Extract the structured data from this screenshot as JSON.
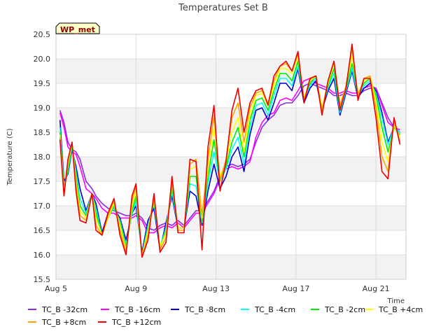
{
  "chart_data": {
    "type": "line",
    "title": "Temperatures Set B",
    "xlabel": "Time",
    "ylabel": "Temperature (C)",
    "badge": "WP_met",
    "xlim": [
      5,
      22.5
    ],
    "ylim": [
      15.5,
      20.5
    ],
    "x_ticks": [
      {
        "v": 5,
        "label": "Aug 5"
      },
      {
        "v": 9,
        "label": "Aug 9"
      },
      {
        "v": 13,
        "label": "Aug 13"
      },
      {
        "v": 17,
        "label": "Aug 17"
      },
      {
        "v": 21,
        "label": "Aug 21"
      }
    ],
    "y_ticks": [
      15.5,
      16.0,
      16.5,
      17.0,
      17.5,
      18.0,
      18.5,
      19.0,
      19.5,
      20.0,
      20.5
    ],
    "x": [
      5.2,
      5.4,
      5.6,
      5.8,
      6.0,
      6.2,
      6.5,
      6.8,
      7.0,
      7.3,
      7.6,
      7.9,
      8.2,
      8.5,
      8.8,
      9.0,
      9.3,
      9.6,
      9.9,
      10.2,
      10.5,
      10.8,
      11.1,
      11.4,
      11.7,
      12.0,
      12.3,
      12.6,
      12.9,
      13.2,
      13.5,
      13.8,
      14.1,
      14.4,
      14.7,
      15.0,
      15.3,
      15.6,
      15.9,
      16.2,
      16.5,
      16.8,
      17.1,
      17.4,
      17.7,
      18.0,
      18.3,
      18.6,
      18.9,
      19.2,
      19.5,
      19.8,
      20.1,
      20.4,
      20.7,
      21.0,
      21.3,
      21.6,
      21.9,
      22.2
    ],
    "series": [
      {
        "name": "TC_B -32cm",
        "color": "#8a2be2",
        "values": [
          18.95,
          18.7,
          18.3,
          18.15,
          18.1,
          17.95,
          17.5,
          17.35,
          17.2,
          17.05,
          16.95,
          16.9,
          16.85,
          16.8,
          16.8,
          16.85,
          16.75,
          16.55,
          16.5,
          16.6,
          16.65,
          16.6,
          16.7,
          16.6,
          16.75,
          16.9,
          16.9,
          17.1,
          17.3,
          17.6,
          17.8,
          17.85,
          17.8,
          17.85,
          17.95,
          18.3,
          18.6,
          18.75,
          18.85,
          19.05,
          19.1,
          19.1,
          19.25,
          19.45,
          19.5,
          19.45,
          19.4,
          19.35,
          19.25,
          19.25,
          19.3,
          19.25,
          19.25,
          19.35,
          19.4,
          19.4,
          19.1,
          18.8,
          18.6,
          18.5
        ]
      },
      {
        "name": "TC_B -16cm",
        "color": "#ff00ff",
        "values": [
          18.9,
          18.6,
          18.2,
          18.1,
          18.05,
          17.8,
          17.35,
          17.25,
          17.15,
          16.95,
          16.85,
          16.85,
          16.75,
          16.75,
          16.75,
          16.8,
          16.7,
          16.45,
          16.45,
          16.55,
          16.6,
          16.55,
          16.65,
          16.55,
          16.7,
          16.85,
          16.85,
          17.05,
          17.25,
          17.55,
          17.75,
          17.8,
          17.75,
          17.8,
          17.9,
          18.4,
          18.7,
          18.85,
          18.9,
          19.15,
          19.2,
          19.15,
          19.35,
          19.55,
          19.6,
          19.5,
          19.45,
          19.4,
          19.3,
          19.3,
          19.35,
          19.3,
          19.3,
          19.4,
          19.45,
          19.4,
          19.05,
          18.7,
          18.6,
          18.55
        ]
      },
      {
        "name": "TC_B -8cm",
        "color": "#0000cd",
        "values": [
          18.75,
          17.5,
          17.65,
          18.15,
          17.8,
          17.35,
          16.9,
          17.25,
          17.05,
          16.45,
          16.85,
          16.95,
          16.75,
          16.3,
          16.85,
          17.0,
          16.05,
          16.7,
          16.95,
          16.1,
          16.65,
          17.2,
          16.55,
          16.55,
          17.3,
          17.2,
          16.6,
          17.3,
          17.85,
          17.35,
          17.6,
          18.0,
          18.2,
          17.7,
          18.45,
          18.95,
          19.0,
          18.75,
          19.1,
          19.5,
          19.5,
          19.35,
          19.8,
          19.1,
          19.4,
          19.55,
          18.95,
          19.35,
          19.6,
          18.85,
          19.3,
          19.75,
          19.2,
          19.4,
          19.5,
          19.35,
          18.9,
          18.3,
          18.6,
          18.5
        ]
      },
      {
        "name": "TC_B -4cm",
        "color": "#00ffff",
        "values": [
          18.6,
          17.4,
          17.7,
          18.2,
          17.7,
          17.15,
          16.85,
          17.25,
          16.95,
          16.4,
          16.8,
          16.95,
          16.7,
          16.2,
          16.85,
          17.1,
          16.0,
          16.6,
          17.05,
          16.15,
          16.55,
          17.3,
          16.55,
          16.55,
          17.45,
          17.4,
          16.65,
          17.45,
          18.1,
          17.5,
          17.75,
          18.15,
          18.4,
          17.85,
          18.6,
          19.05,
          19.1,
          18.85,
          19.25,
          19.6,
          19.6,
          19.45,
          19.85,
          19.2,
          19.45,
          19.6,
          19.0,
          19.4,
          19.7,
          18.9,
          19.35,
          19.8,
          19.25,
          19.45,
          19.55,
          19.3,
          18.8,
          18.25,
          18.6,
          18.5
        ]
      },
      {
        "name": "TC_B -2cm",
        "color": "#00ee00",
        "values": [
          18.5,
          17.35,
          17.75,
          18.25,
          17.6,
          17.0,
          16.8,
          17.25,
          16.85,
          16.4,
          16.75,
          17.0,
          16.65,
          16.15,
          16.9,
          17.2,
          15.98,
          16.55,
          17.1,
          16.15,
          16.5,
          17.4,
          16.55,
          16.55,
          17.6,
          17.6,
          16.7,
          17.6,
          18.35,
          17.55,
          17.8,
          18.3,
          18.6,
          18.0,
          18.75,
          19.15,
          19.2,
          18.95,
          19.35,
          19.7,
          19.7,
          19.55,
          19.95,
          19.2,
          19.5,
          19.65,
          19.0,
          19.45,
          19.8,
          18.95,
          19.4,
          19.9,
          19.3,
          19.5,
          19.6,
          19.25,
          18.6,
          18.1,
          18.6,
          18.45
        ]
      },
      {
        "name": "TC_B +4cm",
        "color": "#ffff00",
        "values": [
          18.45,
          17.3,
          17.85,
          18.28,
          17.5,
          16.9,
          16.75,
          17.25,
          16.75,
          16.4,
          16.75,
          17.05,
          16.6,
          16.1,
          17.0,
          17.3,
          15.97,
          16.5,
          17.15,
          16.15,
          16.45,
          17.5,
          16.55,
          16.55,
          17.75,
          17.8,
          16.75,
          17.75,
          18.6,
          17.6,
          17.9,
          18.5,
          18.8,
          18.1,
          18.85,
          19.25,
          19.3,
          19.05,
          19.45,
          19.8,
          19.8,
          19.7,
          20.05,
          19.2,
          19.55,
          19.65,
          19.0,
          19.5,
          19.9,
          19.05,
          19.45,
          20.05,
          19.3,
          19.55,
          19.65,
          19.15,
          18.3,
          17.9,
          18.65,
          18.4
        ]
      },
      {
        "name": "TC_B +8cm",
        "color": "#ffa500",
        "values": [
          18.4,
          17.25,
          17.9,
          18.3,
          17.4,
          16.8,
          16.7,
          17.25,
          16.6,
          16.4,
          16.8,
          17.1,
          16.5,
          16.05,
          17.1,
          17.4,
          15.96,
          16.4,
          17.2,
          16.1,
          16.35,
          17.55,
          16.5,
          16.5,
          17.85,
          17.95,
          16.8,
          17.95,
          18.85,
          17.5,
          17.95,
          18.8,
          19.1,
          18.3,
          19.0,
          19.3,
          19.35,
          19.1,
          19.55,
          19.85,
          19.9,
          19.75,
          20.1,
          19.15,
          19.6,
          19.65,
          18.95,
          19.55,
          19.95,
          19.05,
          19.45,
          20.2,
          19.25,
          19.6,
          19.65,
          19.0,
          18.0,
          17.7,
          18.75,
          18.3
        ]
      },
      {
        "name": "TC_B +12cm",
        "color": "#ee0000",
        "values": [
          18.35,
          17.2,
          17.95,
          18.3,
          17.3,
          16.7,
          16.65,
          17.25,
          16.5,
          16.4,
          16.85,
          17.15,
          16.4,
          16.0,
          17.2,
          17.45,
          15.95,
          16.3,
          17.25,
          16.05,
          16.25,
          17.6,
          16.45,
          16.45,
          17.95,
          17.9,
          16.1,
          18.2,
          19.05,
          17.3,
          17.9,
          18.95,
          19.4,
          18.5,
          19.1,
          19.35,
          19.4,
          19.05,
          19.65,
          19.85,
          19.95,
          19.75,
          20.15,
          19.1,
          19.6,
          19.65,
          18.85,
          19.55,
          19.95,
          18.95,
          19.4,
          20.3,
          19.15,
          19.6,
          19.6,
          18.8,
          17.7,
          17.55,
          18.8,
          18.25
        ]
      }
    ],
    "legend_placement": "bottom",
    "grid": true
  }
}
